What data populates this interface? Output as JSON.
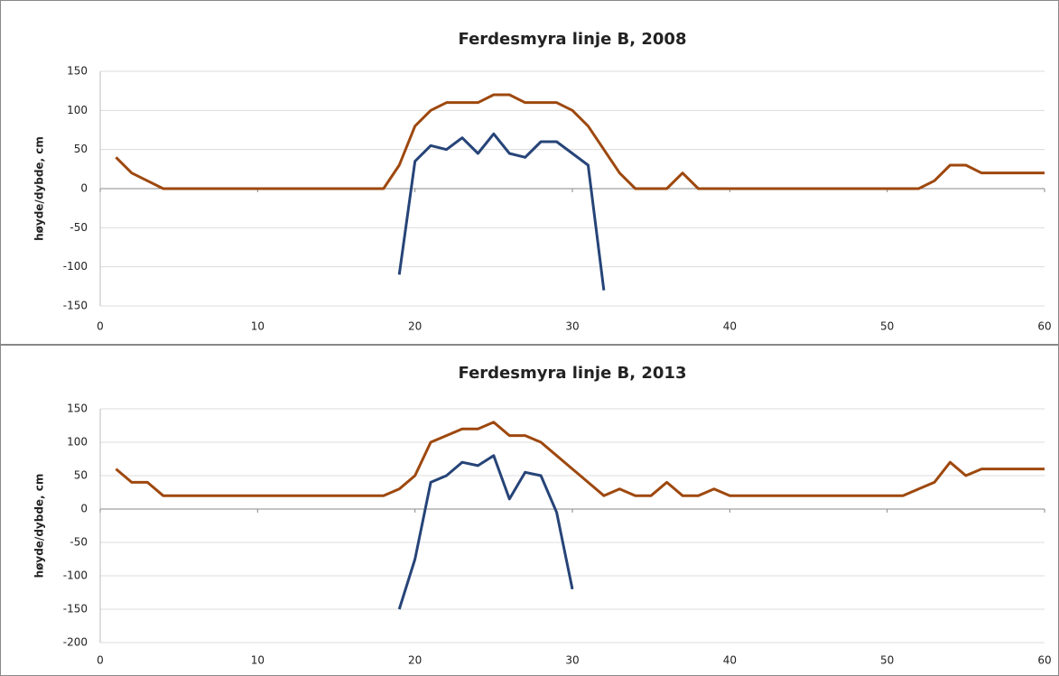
{
  "chart_data": [
    {
      "type": "line",
      "title": "Ferdesmyra linje B, 2008",
      "y_label": "høyde/dybde, cm",
      "x": [
        1,
        2,
        3,
        4,
        5,
        6,
        7,
        8,
        9,
        10,
        11,
        12,
        13,
        14,
        15,
        16,
        17,
        18,
        19,
        20,
        21,
        22,
        23,
        24,
        25,
        26,
        27,
        28,
        29,
        30,
        31,
        32,
        33,
        34,
        35,
        36,
        37,
        38,
        39,
        40,
        41,
        42,
        43,
        44,
        45,
        46,
        47,
        48,
        49,
        50,
        51,
        52,
        53,
        54,
        55,
        56,
        57,
        58,
        59,
        60
      ],
      "series": [
        {
          "color": "#9e480e",
          "values": [
            40,
            20,
            10,
            0,
            0,
            0,
            0,
            0,
            0,
            0,
            0,
            0,
            0,
            0,
            0,
            0,
            0,
            0,
            30,
            80,
            100,
            110,
            110,
            110,
            120,
            120,
            110,
            110,
            110,
            100,
            80,
            50,
            20,
            0,
            0,
            0,
            20,
            0,
            0,
            0,
            0,
            0,
            0,
            0,
            0,
            0,
            0,
            0,
            0,
            0,
            0,
            0,
            10,
            30,
            30,
            20,
            20,
            20,
            20,
            20
          ]
        },
        {
          "color": "#264478",
          "values": [
            null,
            null,
            null,
            null,
            null,
            null,
            null,
            null,
            null,
            null,
            null,
            null,
            null,
            null,
            null,
            null,
            null,
            null,
            -110,
            35,
            55,
            50,
            65,
            45,
            70,
            45,
            40,
            60,
            60,
            45,
            30,
            -130,
            null,
            null,
            null,
            null,
            null,
            null,
            null,
            null,
            null,
            null,
            null,
            null,
            null,
            null,
            null,
            null,
            null,
            null,
            null,
            null,
            null,
            null,
            null,
            null,
            null,
            null,
            null,
            null
          ]
        }
      ],
      "xlim": [
        0,
        60
      ],
      "xticks": [
        0,
        10,
        20,
        30,
        40,
        50,
        60
      ],
      "ylim": [
        -150,
        150
      ],
      "yticks": [
        -150,
        -100,
        -50,
        0,
        50,
        100,
        150
      ],
      "grid": true
    },
    {
      "type": "line",
      "title": "Ferdesmyra linje B, 2013",
      "y_label": "høyde/dybde, cm",
      "x": [
        1,
        2,
        3,
        4,
        5,
        6,
        7,
        8,
        9,
        10,
        11,
        12,
        13,
        14,
        15,
        16,
        17,
        18,
        19,
        20,
        21,
        22,
        23,
        24,
        25,
        26,
        27,
        28,
        29,
        30,
        31,
        32,
        33,
        34,
        35,
        36,
        37,
        38,
        39,
        40,
        41,
        42,
        43,
        44,
        45,
        46,
        47,
        48,
        49,
        50,
        51,
        52,
        53,
        54,
        55,
        56,
        57,
        58,
        59,
        60
      ],
      "series": [
        {
          "color": "#9e480e",
          "values": [
            60,
            40,
            40,
            20,
            20,
            20,
            20,
            20,
            20,
            20,
            20,
            20,
            20,
            20,
            20,
            20,
            20,
            20,
            30,
            50,
            100,
            110,
            120,
            120,
            130,
            110,
            110,
            100,
            80,
            60,
            40,
            20,
            30,
            20,
            20,
            40,
            20,
            20,
            30,
            20,
            20,
            20,
            20,
            20,
            20,
            20,
            20,
            20,
            20,
            20,
            20,
            30,
            40,
            70,
            50,
            60,
            60,
            60,
            60,
            60
          ]
        },
        {
          "color": "#264478",
          "values": [
            null,
            null,
            null,
            null,
            null,
            null,
            null,
            null,
            null,
            null,
            null,
            null,
            null,
            null,
            null,
            null,
            null,
            null,
            -150,
            -75,
            40,
            50,
            70,
            65,
            80,
            15,
            55,
            50,
            -5,
            -120,
            null,
            null,
            null,
            null,
            null,
            null,
            null,
            null,
            null,
            null,
            null,
            null,
            null,
            null,
            null,
            null,
            null,
            null,
            null,
            null,
            null,
            null,
            null,
            null,
            null,
            null,
            null,
            null,
            null,
            null
          ]
        }
      ],
      "xlim": [
        0,
        60
      ],
      "xticks": [
        0,
        10,
        20,
        30,
        40,
        50,
        60
      ],
      "ylim": [
        -200,
        150
      ],
      "yticks": [
        -200,
        -150,
        -100,
        -50,
        0,
        50,
        100,
        150
      ],
      "grid": true
    }
  ]
}
